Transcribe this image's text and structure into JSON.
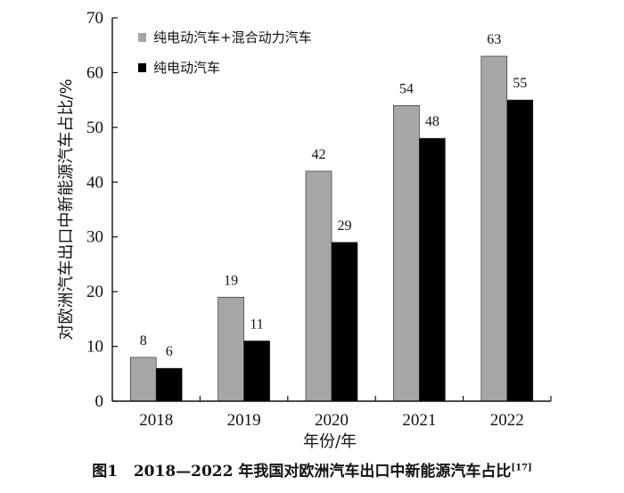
{
  "chart_data": {
    "type": "bar",
    "categories": [
      "2018",
      "2019",
      "2020",
      "2021",
      "2022"
    ],
    "series": [
      {
        "name": "纯电动汽车+混合动力汽车",
        "values": [
          8,
          19,
          42,
          54,
          63
        ],
        "color": "#a6a6a6"
      },
      {
        "name": "纯电动汽车",
        "values": [
          6,
          11,
          29,
          48,
          55
        ],
        "color": "#000000"
      }
    ],
    "xlabel": "年份/年",
    "ylabel": "对欧洲汽车出口中新能源汽车占比/%",
    "ylim": [
      0,
      70
    ],
    "yticks": [
      0,
      10,
      20,
      30,
      40,
      50,
      60,
      70
    ],
    "legend_position": "top-left",
    "grid": false
  },
  "caption": {
    "figure_number": "图1",
    "text": "2018—2022 年我国对欧洲汽车出口中新能源汽车占比",
    "citation": "[17]"
  }
}
